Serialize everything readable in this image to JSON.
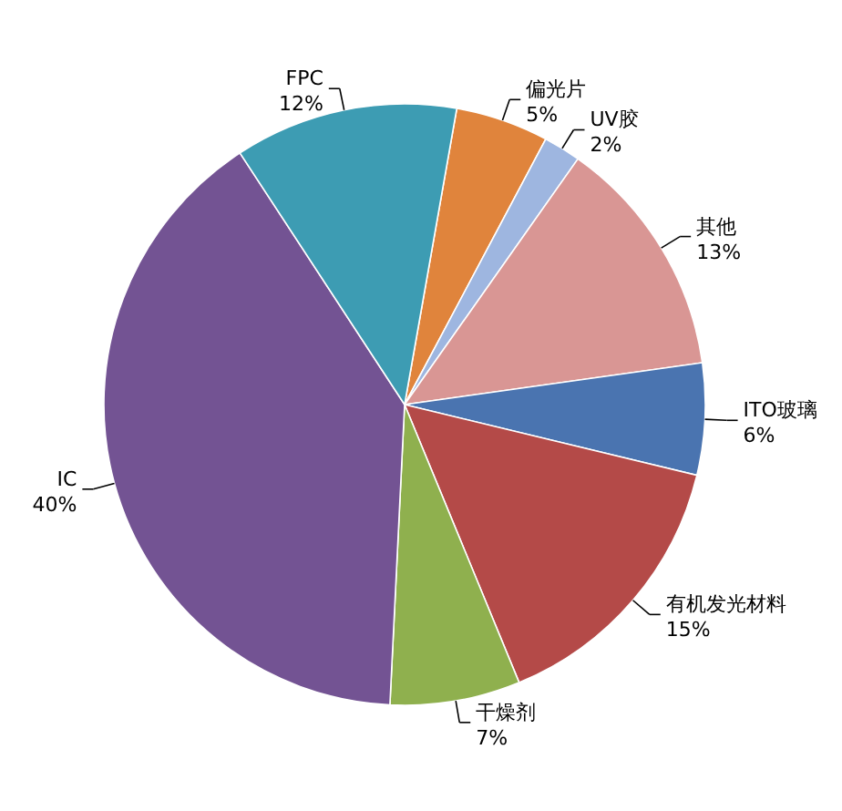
{
  "chart_data": {
    "type": "pie",
    "categories": [
      "偏光片",
      "UV胶",
      "其他",
      "ITO玻璃",
      "有机发光材料",
      "干燥剂",
      "IC",
      "FPC"
    ],
    "values": [
      5,
      2,
      13,
      6,
      15,
      7,
      40,
      12
    ],
    "colors": [
      "#e0843c",
      "#9eb6e0",
      "#d99694",
      "#4a74b0",
      "#b44a48",
      "#8fb04e",
      "#735393",
      "#3d9cb3"
    ],
    "value_labels": [
      "5%",
      "2%",
      "13%",
      "6%",
      "15%",
      "7%",
      "40%",
      "12%"
    ]
  }
}
